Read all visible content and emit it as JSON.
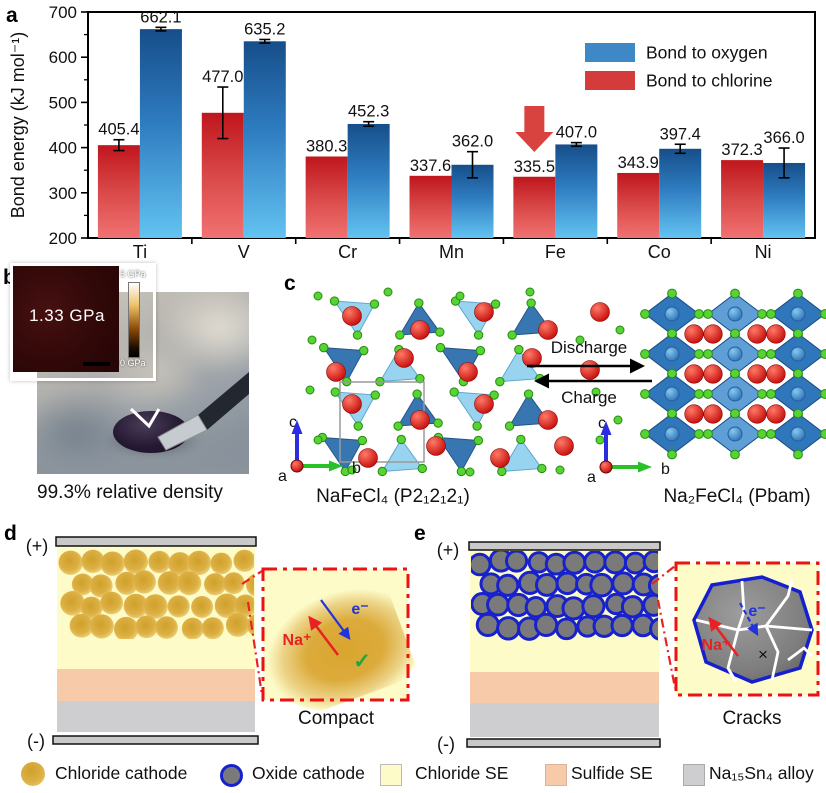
{
  "figure": {
    "panels": {
      "a": "a",
      "b": "b",
      "c": "c",
      "d": "d",
      "e": "e"
    }
  },
  "chart_data": {
    "type": "bar",
    "title": "",
    "ylabel": "Bond energy (kJ mol⁻¹)",
    "xlabel": "",
    "ylim": [
      200,
      700
    ],
    "yticks": [
      200,
      300,
      400,
      500,
      600,
      700
    ],
    "categories": [
      "Ti",
      "V",
      "Cr",
      "Mn",
      "Fe",
      "Co",
      "Ni"
    ],
    "series": [
      {
        "name": "Bond to oxygen",
        "color": "#3d88c5",
        "values": [
          662.1,
          635.2,
          452.3,
          362.0,
          407.0,
          397.4,
          366.0
        ],
        "errors": [
          4,
          4,
          5,
          29,
          4,
          10,
          33
        ]
      },
      {
        "name": "Bond to chlorine",
        "color": "#d43c3c",
        "values": [
          405.4,
          477.0,
          380.3,
          337.6,
          335.5,
          343.9,
          372.3
        ],
        "errors": [
          12,
          57,
          0,
          0,
          0,
          0,
          0
        ]
      }
    ],
    "legend_position": "top-right",
    "grid": false,
    "annotation": {
      "type": "arrow-down",
      "category": "Fe",
      "series": "Bond to chlorine",
      "color": "#d84340"
    }
  },
  "panel_b": {
    "inset_value": "1.33 GPa",
    "colorbar_top": "5 GPa",
    "colorbar_bottom": "0 GPa",
    "caption": "99.3% relative density"
  },
  "panel_c": {
    "forward": "Discharge",
    "backward": "Charge",
    "left_structure": "NaFeCl₄ (P2₁2₁2₁)",
    "right_structure": "Na₂FeCl₄ (Pbam)",
    "axes": {
      "a": "a",
      "b": "b",
      "c": "c"
    }
  },
  "panel_d": {
    "positive": "(+)",
    "negative": "(-)",
    "ion": "Na⁺",
    "electron": "e⁻",
    "check": "✓",
    "caption": "Compact"
  },
  "panel_e": {
    "positive": "(+)",
    "negative": "(-)",
    "ion": "Na⁺",
    "electron": "e⁻",
    "cross": "×",
    "caption": "Cracks"
  },
  "bottom_legend": {
    "items": [
      {
        "label": "Chloride cathode",
        "swatch": "gold-circle",
        "color": "#ddb045"
      },
      {
        "label": "Oxide cathode",
        "swatch": "blue-ring-circle",
        "color": "#7a7a7a"
      },
      {
        "label": "Chloride SE",
        "swatch": "pale-yellow-square",
        "color": "#fdfbc8"
      },
      {
        "label": "Sulfide SE",
        "swatch": "peach-square",
        "color": "#f7cbaa"
      },
      {
        "label": "Na₁₅Sn₄ alloy",
        "swatch": "gray-square",
        "color": "#cecdd0"
      }
    ]
  }
}
